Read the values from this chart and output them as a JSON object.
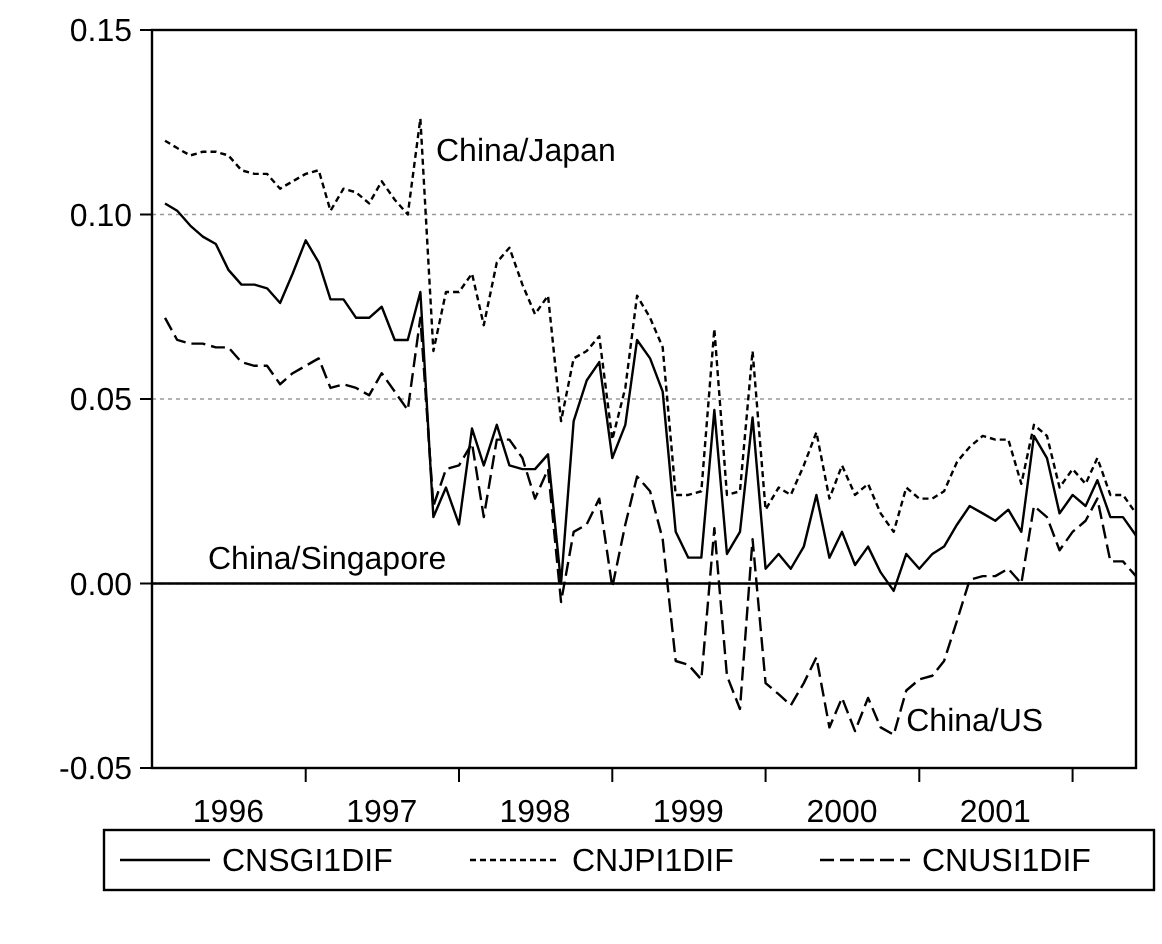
{
  "chart_data": {
    "type": "line",
    "xlim": [
      "1996-01",
      "2002-06"
    ],
    "xticks": [
      {
        "value": "1997-01",
        "label": null
      },
      {
        "value": "1998-01",
        "label": null
      },
      {
        "value": "1999-01",
        "label": null
      },
      {
        "value": "2000-01",
        "label": null
      },
      {
        "value": "2001-01",
        "label": null
      },
      {
        "value": "2002-01",
        "label": null
      },
      {
        "value": "1996-07",
        "label": "1996"
      },
      {
        "value": "1997-07",
        "label": "1997"
      },
      {
        "value": "1998-07",
        "label": "1998"
      },
      {
        "value": "1999-07",
        "label": "1999"
      },
      {
        "value": "2000-07",
        "label": "2000"
      },
      {
        "value": "2001-07",
        "label": "2001"
      }
    ],
    "ylim": [
      -0.05,
      0.15
    ],
    "yticks": [
      {
        "value": -0.05,
        "label": "-0.05"
      },
      {
        "value": 0,
        "label": "0.00"
      },
      {
        "value": 0.05,
        "label": "0.05"
      },
      {
        "value": 0.1,
        "label": "0.10"
      },
      {
        "value": 0.15,
        "label": "0.15"
      }
    ],
    "grid": "y",
    "legend": "bottom",
    "ref_lines": [
      {
        "axis": "y",
        "value": 0,
        "color": "#000000",
        "line_style": "solid"
      }
    ],
    "annotations": [
      "China/Japan",
      "China/Singapore",
      {
        "text": "China/US",
        "x": "2000-12",
        "y": -0.037
      }
    ],
    "series": [
      {
        "name": "CNSGI1DIF",
        "color": "#000000",
        "line_style": "solid",
        "values": [
          0.103,
          0.101,
          0.097,
          0.094,
          0.092,
          0.085,
          0.081,
          0.081,
          0.08,
          0.076,
          0.084,
          0.093,
          0.087,
          0.077,
          0.077,
          0.072,
          0.072,
          0.075,
          0.066,
          0.066,
          0.079,
          0.018,
          0.026,
          0.016,
          0.042,
          0.032,
          0.043,
          0.032,
          0.031,
          0.031,
          0.035,
          0.0,
          0.044,
          0.055,
          0.06,
          0.034,
          0.043,
          0.066,
          0.061,
          0.052,
          0.014,
          0.007,
          0.007,
          0.047,
          0.008,
          0.014,
          0.045,
          0.004,
          0.008,
          0.004,
          0.01,
          0.024,
          0.007,
          0.014,
          0.005,
          0.01,
          0.003,
          -0.002,
          0.008,
          0.004,
          0.008,
          0.01,
          0.016,
          0.021,
          0.019,
          0.017,
          0.02,
          0.014,
          0.04,
          0.034,
          0.019,
          0.024,
          0.021,
          0.028,
          0.018,
          0.018,
          0.013
        ]
      },
      {
        "name": "CNJPI1DIF",
        "color": "#000000",
        "line_style": "dotted",
        "values": [
          0.12,
          0.118,
          0.116,
          0.117,
          0.117,
          0.116,
          0.112,
          0.111,
          0.111,
          0.107,
          0.109,
          0.111,
          0.112,
          0.101,
          0.107,
          0.106,
          0.103,
          0.109,
          0.104,
          0.1,
          0.126,
          0.063,
          0.079,
          0.079,
          0.084,
          0.07,
          0.087,
          0.091,
          0.081,
          0.073,
          0.078,
          0.044,
          0.061,
          0.063,
          0.067,
          0.039,
          0.053,
          0.078,
          0.072,
          0.064,
          0.024,
          0.024,
          0.025,
          0.069,
          0.024,
          0.025,
          0.063,
          0.02,
          0.026,
          0.024,
          0.032,
          0.041,
          0.023,
          0.032,
          0.024,
          0.027,
          0.019,
          0.014,
          0.026,
          0.023,
          0.023,
          0.025,
          0.033,
          0.037,
          0.04,
          0.039,
          0.039,
          0.027,
          0.043,
          0.04,
          0.026,
          0.031,
          0.027,
          0.034,
          0.024,
          0.024,
          0.019
        ]
      },
      {
        "name": "CNUSI1DIF",
        "color": "#000000",
        "line_style": "dashed",
        "values": [
          0.072,
          0.066,
          0.065,
          0.065,
          0.064,
          0.064,
          0.06,
          0.059,
          0.059,
          0.054,
          0.057,
          0.059,
          0.061,
          0.053,
          0.054,
          0.053,
          0.051,
          0.057,
          0.052,
          0.047,
          0.072,
          0.021,
          0.031,
          0.032,
          0.038,
          0.018,
          0.039,
          0.039,
          0.034,
          0.023,
          0.031,
          -0.005,
          0.014,
          0.016,
          0.023,
          -0.001,
          0.016,
          0.029,
          0.025,
          0.012,
          -0.021,
          -0.022,
          -0.026,
          0.015,
          -0.025,
          -0.034,
          0.012,
          -0.027,
          -0.03,
          -0.033,
          -0.027,
          -0.02,
          -0.039,
          -0.031,
          -0.04,
          -0.031,
          -0.039,
          -0.041,
          -0.029,
          -0.026,
          -0.025,
          -0.021,
          -0.01,
          0.001,
          0.002,
          0.002,
          0.004,
          0.0,
          0.021,
          0.018,
          0.009,
          0.014,
          0.017,
          0.023,
          0.006,
          0.006,
          0.002
        ]
      }
    ],
    "x": [
      "1996-02",
      "1996-03",
      "1996-04",
      "1996-05",
      "1996-06",
      "1996-07",
      "1996-08",
      "1996-09",
      "1996-10",
      "1996-11",
      "1996-12",
      "1997-01",
      "1997-02",
      "1997-03",
      "1997-04",
      "1997-05",
      "1997-06",
      "1997-07",
      "1997-08",
      "1997-09",
      "1997-10",
      "1997-11",
      "1997-12",
      "1998-01",
      "1998-02",
      "1998-03",
      "1998-04",
      "1998-05",
      "1998-06",
      "1998-07",
      "1998-08",
      "1998-09",
      "1998-10",
      "1998-11",
      "1998-12",
      "1999-01",
      "1999-02",
      "1999-03",
      "1999-04",
      "1999-05",
      "1999-06",
      "1999-07",
      "1999-08",
      "1999-09",
      "1999-10",
      "1999-11",
      "1999-12",
      "2000-01",
      "2000-02",
      "2000-03",
      "2000-04",
      "2000-05",
      "2000-06",
      "2000-07",
      "2000-08",
      "2000-09",
      "2000-10",
      "2000-11",
      "2000-12",
      "2001-01",
      "2001-02",
      "2001-03",
      "2001-04",
      "2001-05",
      "2001-06",
      "2001-07",
      "2001-08",
      "2001-09",
      "2001-10",
      "2001-11",
      "2001-12",
      "2002-01",
      "2002-02",
      "2002-03",
      "2002-04",
      "2002-05",
      "2002-06"
    ]
  }
}
